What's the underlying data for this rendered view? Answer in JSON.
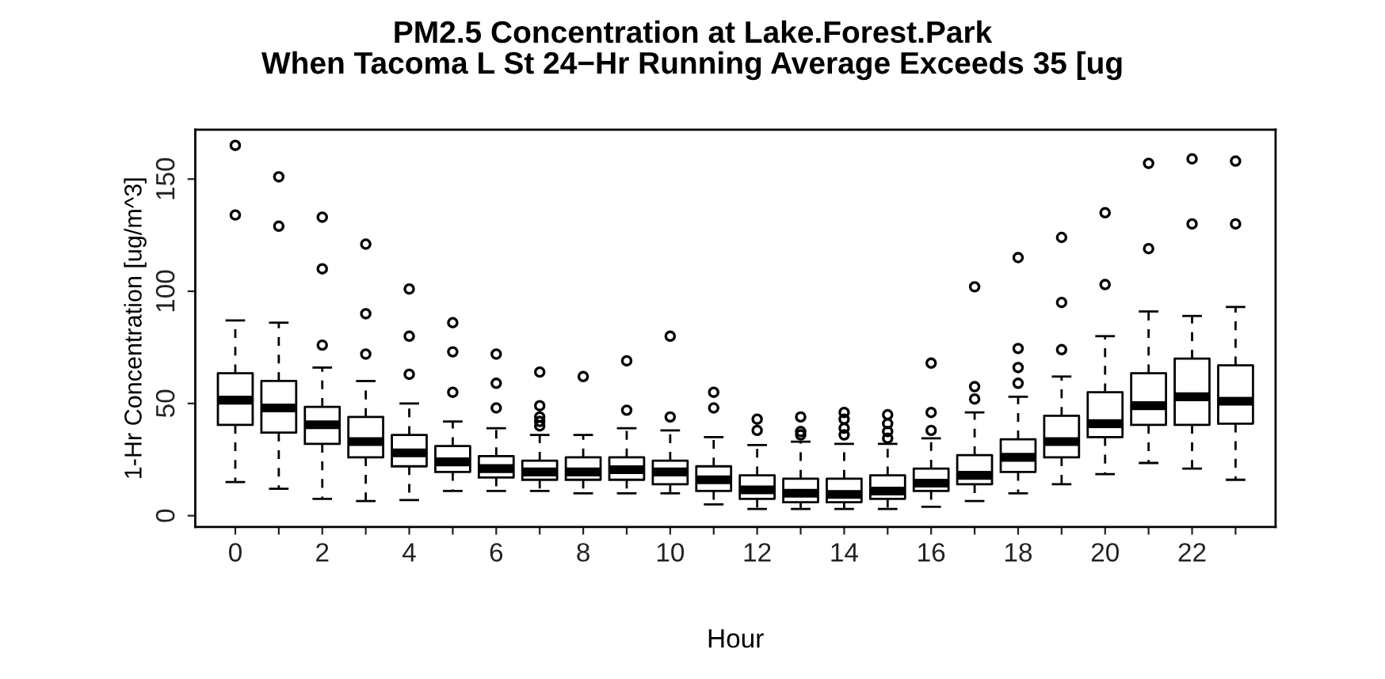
{
  "chart_data": {
    "type": "box",
    "title": "PM2.5 Concentration at Lake.Forest.Park\nWhen Tacoma L St 24−Hr Running Average Exceeds 35 [ug",
    "xlabel": "Hour",
    "ylabel": "1-Hr Concentration [ug/m^3]",
    "categories": [
      "0",
      null,
      "2",
      null,
      "4",
      null,
      "6",
      null,
      "8",
      null,
      "10",
      null,
      "12",
      null,
      "14",
      null,
      "16",
      null,
      "18",
      null,
      "20",
      null,
      "22",
      null
    ],
    "ylim": [
      -5,
      172
    ],
    "yticks": [
      0,
      50,
      100,
      150
    ],
    "grid": false,
    "boxes": [
      {
        "low": 15,
        "q1": 40.5,
        "median": 51.5,
        "q3": 63.5,
        "high": 87,
        "outliers": [
          134,
          165
        ]
      },
      {
        "low": 12,
        "q1": 37,
        "median": 48,
        "q3": 60,
        "high": 86,
        "outliers": [
          129,
          151
        ]
      },
      {
        "low": 7.5,
        "q1": 32,
        "median": 40.5,
        "q3": 48.5,
        "high": 66,
        "outliers": [
          76,
          110,
          133
        ]
      },
      {
        "low": 6.5,
        "q1": 26,
        "median": 33,
        "q3": 44,
        "high": 60,
        "outliers": [
          72,
          90,
          121
        ]
      },
      {
        "low": 7,
        "q1": 22,
        "median": 28,
        "q3": 36,
        "high": 50,
        "outliers": [
          63,
          80,
          101
        ]
      },
      {
        "low": 11,
        "q1": 19.5,
        "median": 24,
        "q3": 31,
        "high": 42,
        "outliers": [
          55,
          73,
          86
        ]
      },
      {
        "low": 11,
        "q1": 17,
        "median": 21,
        "q3": 26.5,
        "high": 39,
        "outliers": [
          48,
          59,
          72
        ]
      },
      {
        "low": 11,
        "q1": 16,
        "median": 19.5,
        "q3": 24.5,
        "high": 36,
        "outliers": [
          40,
          42,
          44,
          49,
          64
        ]
      },
      {
        "low": 10,
        "q1": 16,
        "median": 19.5,
        "q3": 26,
        "high": 36,
        "outliers": [
          62
        ]
      },
      {
        "low": 10,
        "q1": 16,
        "median": 20.5,
        "q3": 26,
        "high": 39,
        "outliers": [
          47,
          69
        ]
      },
      {
        "low": 10,
        "q1": 14,
        "median": 19.5,
        "q3": 24.5,
        "high": 38,
        "outliers": [
          44,
          80
        ]
      },
      {
        "low": 5,
        "q1": 11,
        "median": 16,
        "q3": 22,
        "high": 35,
        "outliers": [
          48,
          55
        ]
      },
      {
        "low": 3,
        "q1": 7.5,
        "median": 11.5,
        "q3": 18,
        "high": 31.5,
        "outliers": [
          38,
          43
        ]
      },
      {
        "low": 3,
        "q1": 6,
        "median": 10,
        "q3": 16.5,
        "high": 33,
        "outliers": [
          36,
          37.5,
          44
        ]
      },
      {
        "low": 3,
        "q1": 6,
        "median": 9.5,
        "q3": 16.5,
        "high": 32,
        "outliers": [
          36,
          39,
          43,
          46
        ]
      },
      {
        "low": 3,
        "q1": 7.5,
        "median": 11,
        "q3": 18,
        "high": 32,
        "outliers": [
          34.5,
          37.5,
          41,
          45
        ]
      },
      {
        "low": 4,
        "q1": 11,
        "median": 14.5,
        "q3": 21,
        "high": 34.5,
        "outliers": [
          38,
          46,
          68
        ]
      },
      {
        "low": 6.5,
        "q1": 14,
        "median": 18,
        "q3": 27,
        "high": 46,
        "outliers": [
          52,
          57.5,
          102
        ]
      },
      {
        "low": 10,
        "q1": 19.5,
        "median": 26,
        "q3": 34,
        "high": 53,
        "outliers": [
          59,
          66,
          74.5,
          115
        ]
      },
      {
        "low": 14,
        "q1": 26,
        "median": 33,
        "q3": 44.5,
        "high": 62,
        "outliers": [
          74,
          95,
          124
        ]
      },
      {
        "low": 18.5,
        "q1": 35,
        "median": 41,
        "q3": 55,
        "high": 80,
        "outliers": [
          103,
          135
        ]
      },
      {
        "low": 23.5,
        "q1": 40.5,
        "median": 49,
        "q3": 63.5,
        "high": 91,
        "outliers": [
          119,
          157
        ]
      },
      {
        "low": 21,
        "q1": 40.5,
        "median": 53,
        "q3": 70,
        "high": 89,
        "outliers": [
          130,
          159
        ]
      },
      {
        "low": 16,
        "q1": 41,
        "median": 51,
        "q3": 67,
        "high": 93,
        "outliers": [
          130,
          158
        ]
      }
    ]
  }
}
